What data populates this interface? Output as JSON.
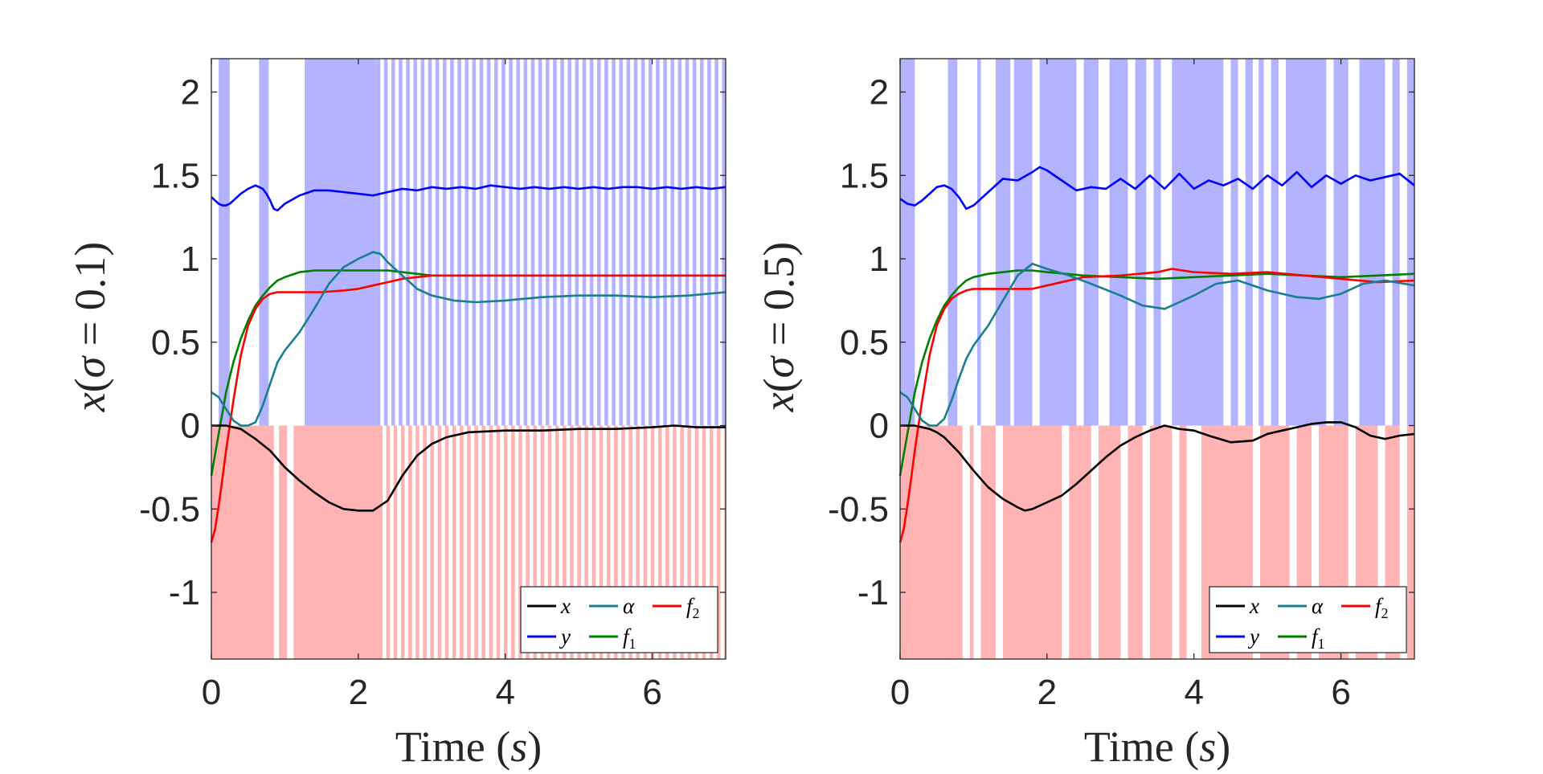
{
  "chart_data": [
    {
      "type": "line",
      "title": "",
      "xlabel_text": "Time",
      "xlabel_var": "s",
      "ylabel_var": "x",
      "ylabel_sigma": "σ",
      "ylabel_eq": "=",
      "ylabel_sigma_value": "0.1",
      "xlim": [
        0,
        7
      ],
      "ylim": [
        -1.4,
        2.2
      ],
      "xticks": [
        0,
        2,
        4,
        6
      ],
      "xtick_labels": [
        "0",
        "2",
        "4",
        "6"
      ],
      "yticks": [
        -1,
        -0.5,
        0,
        0.5,
        1,
        1.5,
        2
      ],
      "ytick_labels": [
        "-1",
        "-0.5",
        "0",
        "0.5",
        "1",
        "1.5",
        "2"
      ],
      "legend_position": "bottom-right",
      "legend": [
        {
          "symbol": "x",
          "sub": "",
          "color": "#000000"
        },
        {
          "symbol": "α",
          "sub": "",
          "color": "#1a7f8c"
        },
        {
          "symbol": "f",
          "sub": "2",
          "color": "#ff0000"
        },
        {
          "symbol": "y",
          "sub": "",
          "color": "#0000ff"
        },
        {
          "symbol": "f",
          "sub": "1",
          "color": "#008000"
        }
      ],
      "shading": {
        "upper_color": "#b3b3ff",
        "lower_color": "#ffb3b3",
        "upper_on": [
          [
            0.1,
            0.25
          ],
          [
            0.65,
            0.78
          ],
          [
            1.27,
            2.25
          ]
        ],
        "upper_stripes": [
          2.25,
          7.0,
          0.1,
          0.05
        ],
        "lower_on": [
          [
            0,
            0.85
          ],
          [
            0.92,
            1.03
          ],
          [
            1.12,
            2.28
          ]
        ],
        "lower_stripes": [
          2.28,
          7.0,
          0.1,
          0.05
        ]
      },
      "series": [
        {
          "name": "y",
          "color": "#0000ff",
          "x": [
            0,
            0.05,
            0.1,
            0.15,
            0.2,
            0.25,
            0.3,
            0.4,
            0.5,
            0.6,
            0.7,
            0.75,
            0.8,
            0.85,
            0.9,
            1.0,
            1.2,
            1.4,
            1.6,
            1.8,
            2.0,
            2.2,
            2.4,
            2.6,
            2.8,
            3.0,
            3.2,
            3.4,
            3.6,
            3.8,
            4.0,
            4.2,
            4.4,
            4.6,
            4.8,
            5.0,
            5.2,
            5.4,
            5.6,
            5.8,
            6.0,
            6.2,
            6.4,
            6.6,
            6.8,
            7.0
          ],
          "y": [
            1.37,
            1.35,
            1.33,
            1.32,
            1.32,
            1.33,
            1.35,
            1.39,
            1.42,
            1.44,
            1.42,
            1.39,
            1.35,
            1.3,
            1.29,
            1.33,
            1.38,
            1.41,
            1.41,
            1.4,
            1.39,
            1.38,
            1.4,
            1.42,
            1.41,
            1.43,
            1.42,
            1.43,
            1.42,
            1.44,
            1.43,
            1.42,
            1.43,
            1.42,
            1.43,
            1.42,
            1.43,
            1.42,
            1.43,
            1.43,
            1.42,
            1.43,
            1.42,
            1.43,
            1.42,
            1.43
          ]
        },
        {
          "name": "f1",
          "color": "#008000",
          "x": [
            0,
            0.1,
            0.2,
            0.3,
            0.4,
            0.5,
            0.6,
            0.7,
            0.8,
            0.9,
            1.0,
            1.2,
            1.4,
            1.6,
            1.8,
            2.0,
            2.2,
            2.4,
            2.6,
            2.8,
            3.0,
            3.5,
            4.0,
            5.0,
            6.0,
            7.0
          ],
          "y": [
            -0.3,
            -0.05,
            0.2,
            0.38,
            0.52,
            0.63,
            0.72,
            0.78,
            0.83,
            0.87,
            0.89,
            0.92,
            0.93,
            0.93,
            0.93,
            0.93,
            0.93,
            0.93,
            0.92,
            0.91,
            0.9,
            0.9,
            0.9,
            0.9,
            0.9,
            0.9
          ]
        },
        {
          "name": "f2",
          "color": "#ff0000",
          "x": [
            0,
            0.05,
            0.1,
            0.15,
            0.2,
            0.3,
            0.4,
            0.5,
            0.6,
            0.7,
            0.8,
            0.9,
            1.0,
            1.2,
            1.5,
            1.8,
            2.0,
            2.2,
            2.4,
            2.6,
            2.8,
            3.0,
            3.5,
            4.0,
            5.0,
            6.0,
            7.0
          ],
          "y": [
            -0.7,
            -0.62,
            -0.48,
            -0.32,
            -0.15,
            0.15,
            0.42,
            0.6,
            0.7,
            0.76,
            0.79,
            0.8,
            0.8,
            0.8,
            0.8,
            0.81,
            0.82,
            0.84,
            0.86,
            0.88,
            0.89,
            0.9,
            0.9,
            0.9,
            0.9,
            0.9,
            0.9
          ]
        },
        {
          "name": "alpha",
          "color": "#1a7f8c",
          "x": [
            0,
            0.1,
            0.2,
            0.3,
            0.4,
            0.5,
            0.6,
            0.7,
            0.8,
            0.9,
            1.0,
            1.2,
            1.4,
            1.6,
            1.8,
            2.0,
            2.2,
            2.3,
            2.4,
            2.6,
            2.8,
            3.0,
            3.3,
            3.6,
            4.0,
            4.5,
            5.0,
            5.5,
            6.0,
            6.5,
            7.0
          ],
          "y": [
            0.2,
            0.17,
            0.1,
            0.03,
            0.0,
            0.0,
            0.02,
            0.12,
            0.25,
            0.38,
            0.45,
            0.56,
            0.7,
            0.85,
            0.95,
            1.0,
            1.04,
            1.03,
            0.98,
            0.9,
            0.82,
            0.78,
            0.75,
            0.74,
            0.75,
            0.77,
            0.78,
            0.78,
            0.77,
            0.78,
            0.8
          ]
        },
        {
          "name": "x",
          "color": "#000000",
          "x": [
            0,
            0.1,
            0.2,
            0.3,
            0.4,
            0.5,
            0.6,
            0.8,
            1.0,
            1.2,
            1.4,
            1.6,
            1.8,
            2.0,
            2.2,
            2.4,
            2.6,
            2.8,
            3.0,
            3.2,
            3.5,
            4.0,
            4.5,
            5.0,
            5.5,
            6.0,
            6.3,
            6.6,
            7.0
          ],
          "y": [
            0.0,
            0.0,
            0.0,
            -0.01,
            -0.02,
            -0.05,
            -0.08,
            -0.15,
            -0.25,
            -0.33,
            -0.4,
            -0.46,
            -0.5,
            -0.51,
            -0.51,
            -0.45,
            -0.3,
            -0.18,
            -0.11,
            -0.07,
            -0.04,
            -0.03,
            -0.03,
            -0.02,
            -0.02,
            -0.01,
            0.0,
            -0.01,
            -0.01
          ]
        }
      ]
    },
    {
      "type": "line",
      "title": "",
      "xlabel_text": "Time",
      "xlabel_var": "s",
      "ylabel_var": "x",
      "ylabel_sigma": "σ",
      "ylabel_eq": "=",
      "ylabel_sigma_value": "0.5",
      "xlim": [
        0,
        7
      ],
      "ylim": [
        -1.4,
        2.2
      ],
      "xticks": [
        0,
        2,
        4,
        6
      ],
      "xtick_labels": [
        "0",
        "2",
        "4",
        "6"
      ],
      "yticks": [
        -1,
        -0.5,
        0,
        0.5,
        1,
        1.5,
        2
      ],
      "ytick_labels": [
        "-1",
        "-0.5",
        "0",
        "0.5",
        "1",
        "1.5",
        "2"
      ],
      "legend_position": "bottom-right",
      "legend": [
        {
          "symbol": "x",
          "sub": "",
          "color": "#000000"
        },
        {
          "symbol": "α",
          "sub": "",
          "color": "#1a7f8c"
        },
        {
          "symbol": "f",
          "sub": "2",
          "color": "#ff0000"
        },
        {
          "symbol": "y",
          "sub": "",
          "color": "#0000ff"
        },
        {
          "symbol": "f",
          "sub": "1",
          "color": "#008000"
        }
      ],
      "shading": {
        "upper_color": "#b3b3ff",
        "lower_color": "#ffb3b3",
        "upper_on": [
          [
            0,
            0.2
          ],
          [
            0.65,
            0.78
          ],
          [
            1.05,
            1.1
          ],
          [
            1.3,
            1.5
          ],
          [
            1.55,
            1.8
          ],
          [
            1.9,
            2.4
          ],
          [
            2.5,
            2.7
          ],
          [
            2.85,
            3.1
          ],
          [
            3.2,
            3.35
          ],
          [
            3.45,
            3.55
          ],
          [
            3.7,
            4.4
          ],
          [
            4.5,
            4.6
          ],
          [
            4.7,
            4.8
          ],
          [
            4.88,
            4.95
          ],
          [
            5.05,
            5.15
          ],
          [
            5.25,
            5.8
          ],
          [
            5.9,
            6.1
          ],
          [
            6.25,
            6.6
          ],
          [
            6.7,
            6.8
          ],
          [
            6.9,
            7.0
          ]
        ],
        "lower_on": [
          [
            0,
            0.85
          ],
          [
            0.95,
            1.0
          ],
          [
            1.1,
            1.3
          ],
          [
            1.4,
            2.2
          ],
          [
            2.3,
            2.6
          ],
          [
            2.7,
            3.0
          ],
          [
            3.1,
            3.3
          ],
          [
            3.4,
            3.7
          ],
          [
            3.8,
            3.9
          ],
          [
            4.1,
            4.8
          ],
          [
            4.9,
            5.3
          ],
          [
            5.4,
            5.6
          ],
          [
            5.7,
            6.1
          ],
          [
            6.2,
            6.5
          ],
          [
            6.6,
            6.8
          ],
          [
            6.9,
            7.0
          ]
        ]
      },
      "series": [
        {
          "name": "y",
          "color": "#0000ff",
          "x": [
            0,
            0.1,
            0.2,
            0.3,
            0.4,
            0.5,
            0.6,
            0.7,
            0.8,
            0.9,
            1.0,
            1.2,
            1.4,
            1.6,
            1.8,
            1.9,
            2.0,
            2.2,
            2.4,
            2.6,
            2.8,
            3.0,
            3.2,
            3.4,
            3.6,
            3.8,
            4.0,
            4.2,
            4.4,
            4.6,
            4.8,
            5.0,
            5.2,
            5.4,
            5.6,
            5.8,
            6.0,
            6.2,
            6.4,
            6.6,
            6.8,
            7.0
          ],
          "y": [
            1.36,
            1.33,
            1.32,
            1.35,
            1.39,
            1.43,
            1.44,
            1.42,
            1.37,
            1.3,
            1.32,
            1.4,
            1.48,
            1.47,
            1.52,
            1.55,
            1.53,
            1.47,
            1.41,
            1.43,
            1.42,
            1.48,
            1.42,
            1.5,
            1.42,
            1.51,
            1.42,
            1.47,
            1.44,
            1.48,
            1.42,
            1.5,
            1.44,
            1.52,
            1.43,
            1.5,
            1.45,
            1.5,
            1.47,
            1.49,
            1.51,
            1.44
          ]
        },
        {
          "name": "f1",
          "color": "#008000",
          "x": [
            0,
            0.1,
            0.2,
            0.3,
            0.4,
            0.5,
            0.6,
            0.7,
            0.8,
            0.9,
            1.0,
            1.2,
            1.4,
            1.6,
            1.8,
            2.0,
            2.5,
            3.0,
            3.5,
            4.0,
            4.5,
            5.0,
            5.5,
            6.0,
            6.5,
            7.0
          ],
          "y": [
            -0.3,
            -0.05,
            0.2,
            0.38,
            0.52,
            0.63,
            0.72,
            0.78,
            0.83,
            0.87,
            0.89,
            0.91,
            0.92,
            0.93,
            0.93,
            0.92,
            0.9,
            0.89,
            0.88,
            0.89,
            0.9,
            0.91,
            0.9,
            0.89,
            0.9,
            0.91
          ]
        },
        {
          "name": "f2",
          "color": "#ff0000",
          "x": [
            0,
            0.05,
            0.1,
            0.15,
            0.2,
            0.3,
            0.4,
            0.5,
            0.6,
            0.7,
            0.8,
            0.9,
            1.0,
            1.2,
            1.5,
            1.8,
            2.0,
            2.5,
            3.0,
            3.5,
            3.7,
            4.0,
            4.5,
            5.0,
            5.5,
            6.0,
            6.5,
            7.0
          ],
          "y": [
            -0.7,
            -0.62,
            -0.48,
            -0.32,
            -0.15,
            0.15,
            0.42,
            0.6,
            0.7,
            0.76,
            0.79,
            0.81,
            0.82,
            0.82,
            0.82,
            0.82,
            0.84,
            0.89,
            0.9,
            0.92,
            0.94,
            0.92,
            0.91,
            0.92,
            0.9,
            0.88,
            0.86,
            0.87
          ]
        },
        {
          "name": "alpha",
          "color": "#1a7f8c",
          "x": [
            0,
            0.1,
            0.2,
            0.3,
            0.4,
            0.5,
            0.6,
            0.7,
            0.8,
            0.9,
            1.0,
            1.2,
            1.4,
            1.6,
            1.8,
            2.0,
            2.3,
            2.6,
            3.0,
            3.3,
            3.6,
            3.8,
            4.0,
            4.3,
            4.6,
            5.0,
            5.4,
            5.7,
            6.0,
            6.3,
            6.6,
            7.0
          ],
          "y": [
            0.2,
            0.17,
            0.1,
            0.03,
            0.0,
            0.0,
            0.04,
            0.15,
            0.28,
            0.4,
            0.48,
            0.6,
            0.75,
            0.9,
            0.97,
            0.94,
            0.9,
            0.85,
            0.78,
            0.72,
            0.7,
            0.74,
            0.78,
            0.85,
            0.87,
            0.81,
            0.77,
            0.76,
            0.79,
            0.85,
            0.87,
            0.84
          ]
        },
        {
          "name": "x",
          "color": "#000000",
          "x": [
            0,
            0.1,
            0.2,
            0.3,
            0.4,
            0.5,
            0.6,
            0.8,
            1.0,
            1.2,
            1.4,
            1.6,
            1.7,
            1.8,
            2.0,
            2.2,
            2.4,
            2.6,
            2.8,
            3.0,
            3.2,
            3.4,
            3.6,
            3.8,
            4.0,
            4.2,
            4.5,
            4.8,
            5.0,
            5.2,
            5.4,
            5.6,
            5.8,
            6.0,
            6.2,
            6.4,
            6.6,
            6.8,
            7.0
          ],
          "y": [
            0.0,
            0.0,
            0.0,
            -0.01,
            -0.02,
            -0.04,
            -0.07,
            -0.16,
            -0.27,
            -0.37,
            -0.44,
            -0.49,
            -0.51,
            -0.5,
            -0.46,
            -0.42,
            -0.35,
            -0.27,
            -0.19,
            -0.12,
            -0.07,
            -0.03,
            0.0,
            -0.02,
            -0.03,
            -0.06,
            -0.1,
            -0.09,
            -0.05,
            -0.03,
            -0.01,
            0.01,
            0.02,
            0.02,
            -0.01,
            -0.06,
            -0.08,
            -0.06,
            -0.05
          ]
        }
      ]
    }
  ]
}
